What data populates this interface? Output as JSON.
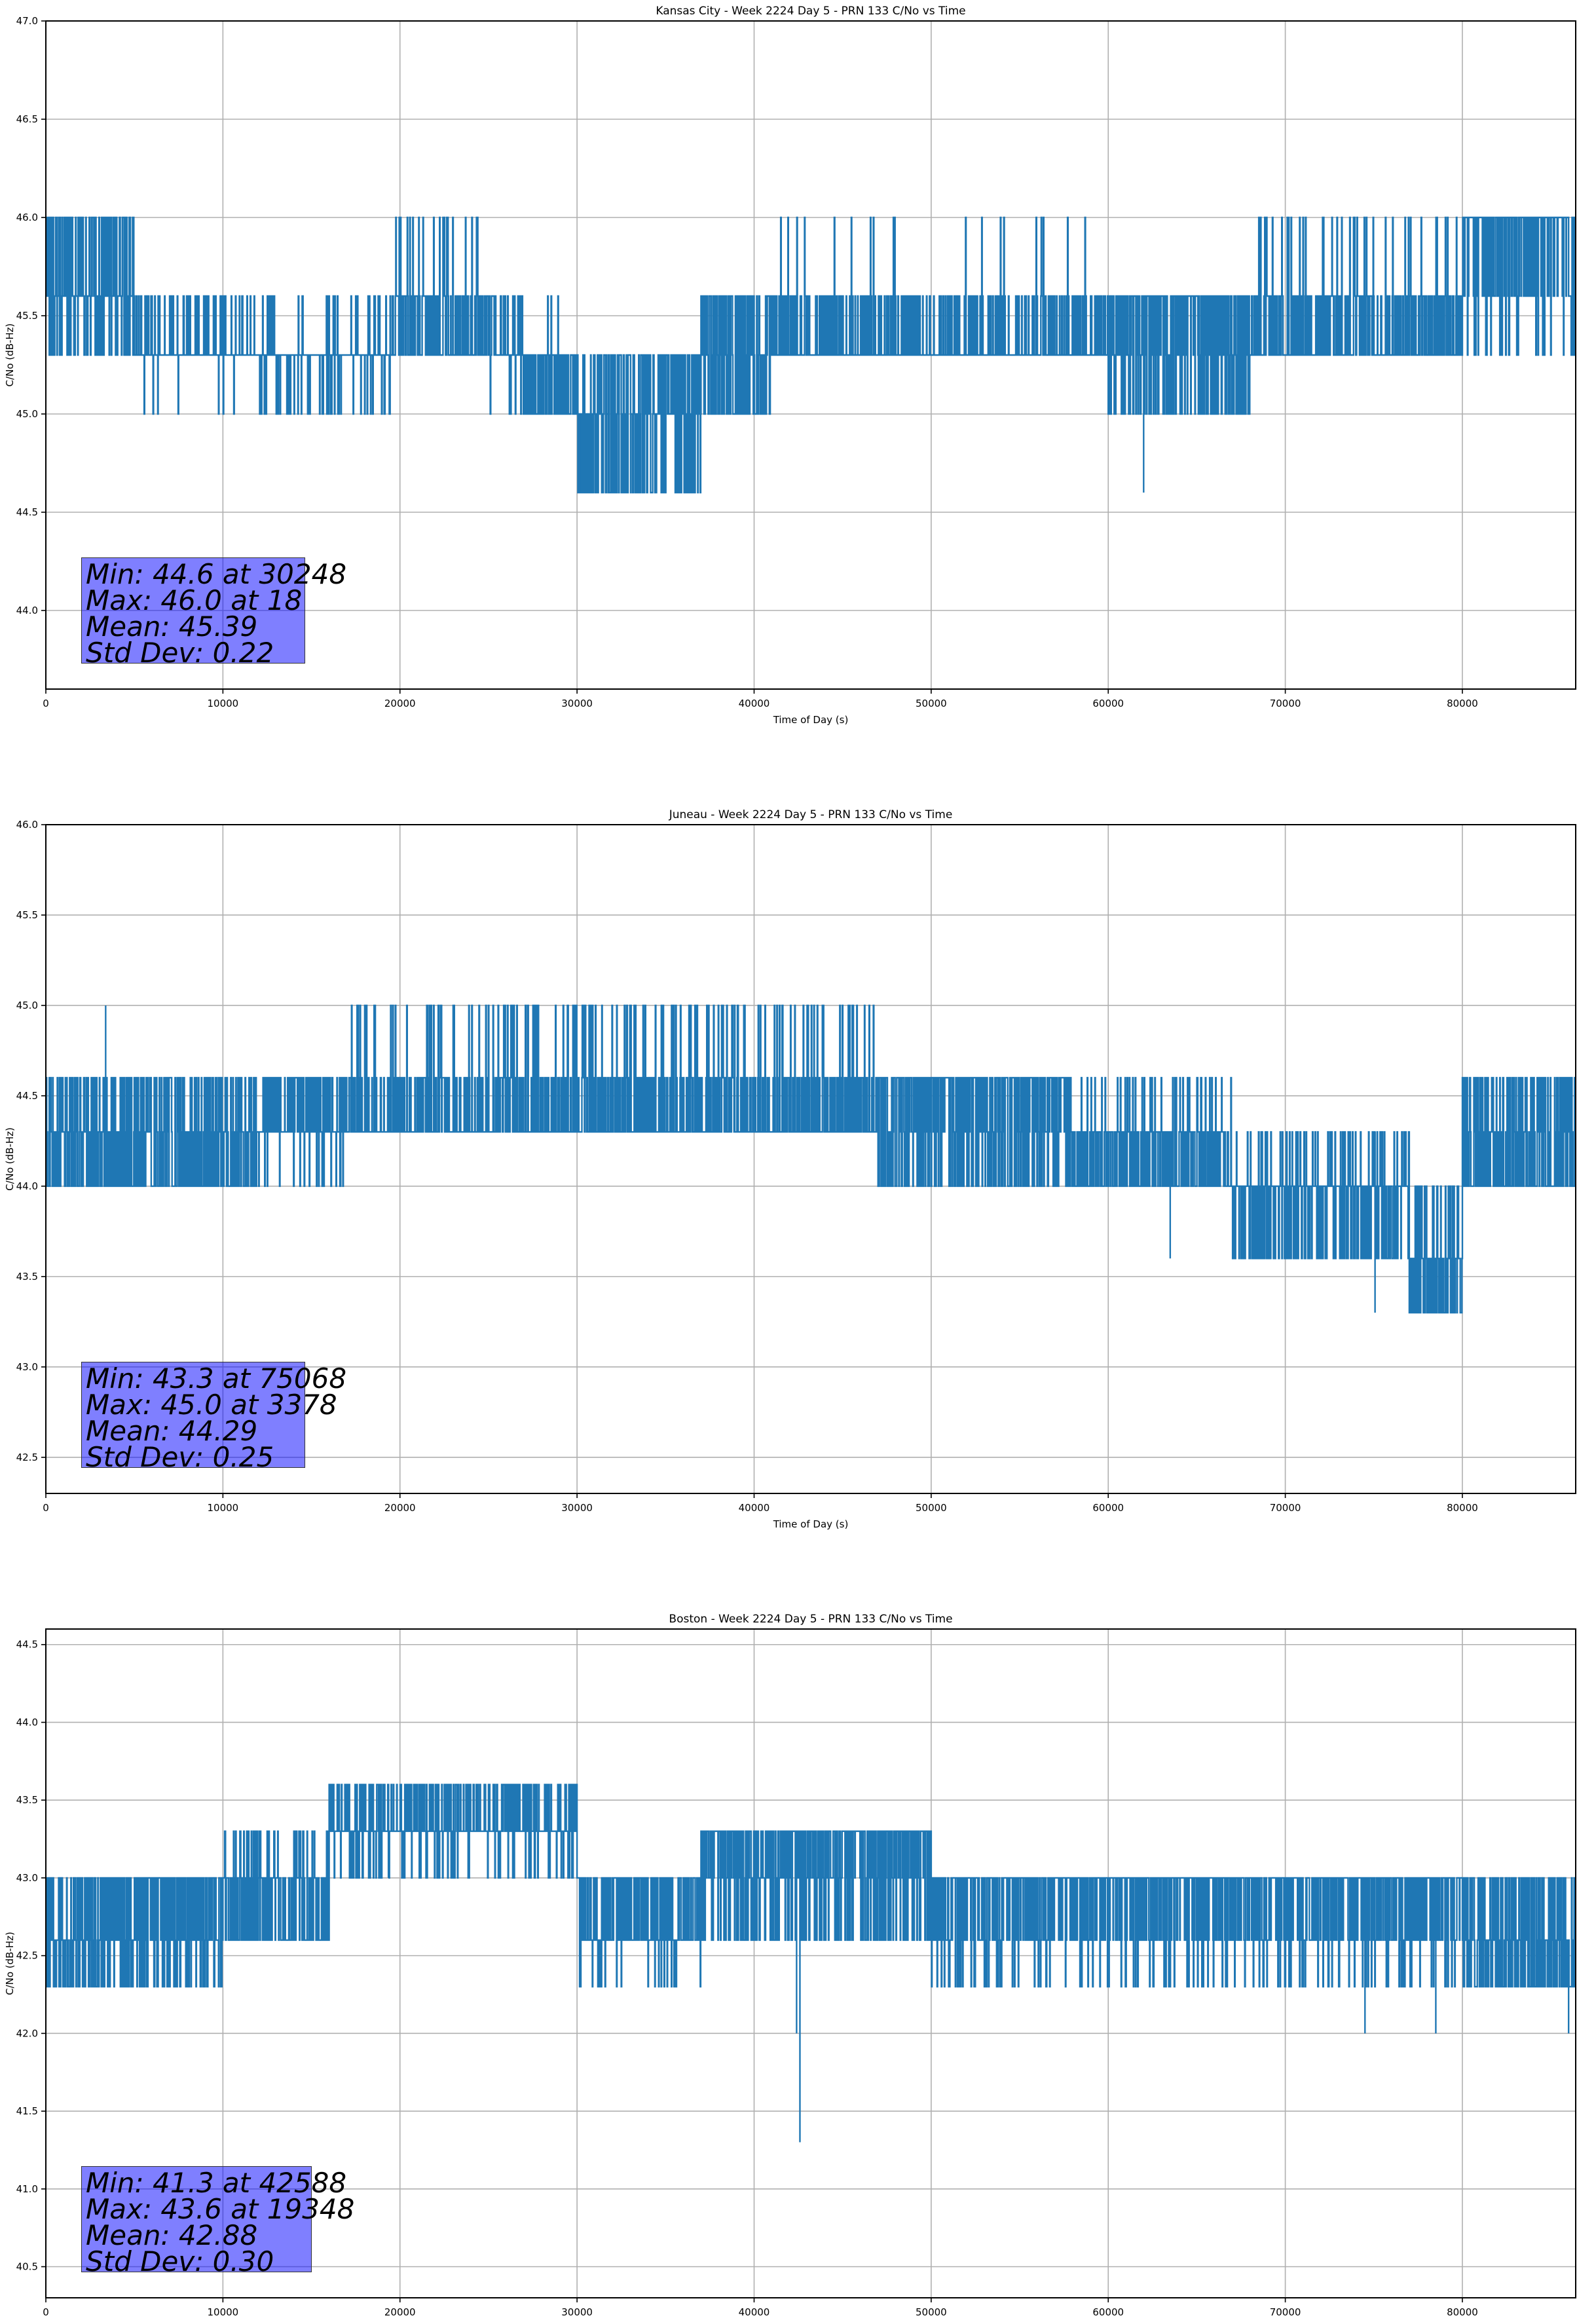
{
  "chart_data": [
    {
      "type": "line",
      "title": "Kansas City - Week 2224 Day 5 - PRN 133 C/No vs Time",
      "xlabel": "Time of Day (s)",
      "ylabel": "C/No (dB-Hz)",
      "xlim": [
        0,
        86400
      ],
      "ylim": [
        43.6,
        47.0
      ],
      "xticks": [
        0,
        10000,
        20000,
        30000,
        40000,
        50000,
        60000,
        70000,
        80000
      ],
      "yticks": [
        "44.0",
        "44.5",
        "45.0",
        "45.5",
        "46.0",
        "46.5",
        "47.0"
      ],
      "grid": true,
      "line_color": "#1f77b4",
      "series": [
        {
          "name": "C/No",
          "segments": [
            {
              "x": [
                0,
                5000
              ],
              "base": 45.6,
              "alts": [
                46.0,
                45.3
              ],
              "p_hi": 0.35,
              "p_lo": 0.25
            },
            {
              "x": [
                5000,
                11500
              ],
              "base": 45.6,
              "alts": [
                45.3,
                45.0
              ],
              "p_hi": 0.8,
              "p_lo": 0.02
            },
            {
              "x": [
                11500,
                19500
              ],
              "base": 45.6,
              "alts": [
                45.3,
                45.0
              ],
              "p_hi": 0.75,
              "p_lo": 0.12
            },
            {
              "x": [
                19500,
                24500
              ],
              "base": 45.6,
              "alts": [
                45.3,
                46.0
              ],
              "p_hi": 0.6,
              "p_lo": 0.1
            },
            {
              "x": [
                24500,
                27000
              ],
              "base": 45.6,
              "alts": [
                45.3,
                45.0
              ],
              "p_hi": 0.6,
              "p_lo": 0.05
            },
            {
              "x": [
                27000,
                30000
              ],
              "base": 45.3,
              "alts": [
                45.0,
                45.6
              ],
              "p_hi": 0.5,
              "p_lo": 0.02
            },
            {
              "x": [
                30000,
                37000
              ],
              "base": 45.0,
              "alts": [
                45.3,
                44.6
              ],
              "p_hi": 0.35,
              "p_lo": 0.35
            },
            {
              "x": [
                37000,
                41000
              ],
              "base": 45.3,
              "alts": [
                45.0,
                45.6
              ],
              "p_hi": 0.45,
              "p_lo": 0.35
            },
            {
              "x": [
                41000,
                60000
              ],
              "base": 45.6,
              "alts": [
                45.3,
                46.0
              ],
              "p_hi": 0.7,
              "p_lo": 0.03
            },
            {
              "x": [
                60000,
                68000
              ],
              "base": 45.3,
              "alts": [
                45.6,
                45.0
              ],
              "p_hi": 0.5,
              "p_lo": 0.25
            },
            {
              "x": [
                68000,
                80000
              ],
              "base": 45.6,
              "alts": [
                45.3,
                46.0
              ],
              "p_hi": 0.6,
              "p_lo": 0.05
            },
            {
              "x": [
                80000,
                86400
              ],
              "base": 45.6,
              "alts": [
                46.0,
                45.3
              ],
              "p_hi": 0.6,
              "p_lo": 0.1
            }
          ],
          "events": [
            [
              30248,
              44.6
            ],
            [
              62000,
              44.6
            ],
            [
              18,
              46.0
            ]
          ]
        }
      ],
      "stats": {
        "min": "Min: 44.6 at 30248",
        "max": "Max: 46.0 at 18",
        "mean": "Mean: 45.39",
        "std": "Std Dev: 0.22"
      }
    },
    {
      "type": "line",
      "title": "Juneau - Week 2224 Day 5 - PRN 133 C/No vs Time",
      "xlabel": "Time of Day (s)",
      "ylabel": "C/No (dB-Hz)",
      "xlim": [
        0,
        86400
      ],
      "ylim": [
        42.3,
        46.0
      ],
      "xticks": [
        0,
        10000,
        20000,
        30000,
        40000,
        50000,
        60000,
        70000,
        80000
      ],
      "yticks": [
        "42.5",
        "43.0",
        "43.5",
        "44.0",
        "44.5",
        "45.0",
        "45.5",
        "46.0"
      ],
      "grid": true,
      "line_color": "#1f77b4",
      "series": [
        {
          "name": "C/No",
          "segments": [
            {
              "x": [
                0,
                12000
              ],
              "base": 44.3,
              "alts": [
                44.0,
                44.6
              ],
              "p_hi": 0.45,
              "p_lo": 0.25
            },
            {
              "x": [
                12000,
                17000
              ],
              "base": 44.6,
              "alts": [
                44.3,
                44.0
              ],
              "p_hi": 0.5,
              "p_lo": 0.1
            },
            {
              "x": [
                17000,
                29000
              ],
              "base": 44.6,
              "alts": [
                44.3,
                45.0
              ],
              "p_hi": 0.6,
              "p_lo": 0.1
            },
            {
              "x": [
                29000,
                47000
              ],
              "base": 44.6,
              "alts": [
                44.3,
                45.0
              ],
              "p_hi": 0.6,
              "p_lo": 0.12
            },
            {
              "x": [
                47000,
                58000
              ],
              "base": 44.3,
              "alts": [
                44.6,
                44.0
              ],
              "p_hi": 0.5,
              "p_lo": 0.3
            },
            {
              "x": [
                58000,
                67000
              ],
              "base": 44.3,
              "alts": [
                44.0,
                44.6
              ],
              "p_hi": 0.5,
              "p_lo": 0.1
            },
            {
              "x": [
                67000,
                77000
              ],
              "base": 44.3,
              "alts": [
                44.0,
                43.6
              ],
              "p_hi": 0.6,
              "p_lo": 0.3
            },
            {
              "x": [
                77000,
                80000
              ],
              "base": 44.0,
              "alts": [
                43.6,
                43.3
              ],
              "p_hi": 0.4,
              "p_lo": 0.4
            },
            {
              "x": [
                80000,
                86400
              ],
              "base": 44.3,
              "alts": [
                44.0,
                44.6
              ],
              "p_hi": 0.5,
              "p_lo": 0.3
            }
          ],
          "events": [
            [
              75068,
              43.3
            ],
            [
              3378,
              45.0
            ],
            [
              63500,
              43.6
            ]
          ]
        }
      ],
      "stats": {
        "min": "Min: 43.3 at 75068",
        "max": "Max: 45.0 at 3378",
        "mean": "Mean: 44.29",
        "std": "Std Dev: 0.25"
      }
    },
    {
      "type": "line",
      "title": "Boston - Week 2224 Day 5 - PRN 133 C/No vs Time",
      "xlabel": "Time of Day (s)",
      "ylabel": "C/No (dB-Hz)",
      "xlim": [
        0,
        86400
      ],
      "ylim": [
        40.3,
        44.6
      ],
      "xticks": [
        0,
        10000,
        20000,
        30000,
        40000,
        50000,
        60000,
        70000,
        80000
      ],
      "yticks": [
        "40.5",
        "41.0",
        "41.5",
        "42.0",
        "42.5",
        "43.0",
        "43.5",
        "44.0",
        "44.5"
      ],
      "grid": true,
      "line_color": "#1f77b4",
      "series": [
        {
          "name": "C/No",
          "segments": [
            {
              "x": [
                0,
                2000
              ],
              "base": 42.6,
              "alts": [
                42.3,
                43.0
              ],
              "p_hi": 0.3,
              "p_lo": 0.4
            },
            {
              "x": [
                2000,
                10000
              ],
              "base": 42.6,
              "alts": [
                43.0,
                42.3
              ],
              "p_hi": 0.45,
              "p_lo": 0.2
            },
            {
              "x": [
                10000,
                16000
              ],
              "base": 43.0,
              "alts": [
                42.6,
                43.3
              ],
              "p_hi": 0.5,
              "p_lo": 0.1
            },
            {
              "x": [
                16000,
                30000
              ],
              "base": 43.0,
              "alts": [
                43.3,
                43.6
              ],
              "p_hi": 0.6,
              "p_lo": 0.3
            },
            {
              "x": [
                30000,
                37000
              ],
              "base": 43.0,
              "alts": [
                42.6,
                42.3
              ],
              "p_hi": 0.5,
              "p_lo": 0.1
            },
            {
              "x": [
                37000,
                50000
              ],
              "base": 43.0,
              "alts": [
                43.3,
                42.6
              ],
              "p_hi": 0.6,
              "p_lo": 0.2
            },
            {
              "x": [
                50000,
                80000
              ],
              "base": 42.6,
              "alts": [
                43.0,
                42.3
              ],
              "p_hi": 0.6,
              "p_lo": 0.1
            },
            {
              "x": [
                80000,
                86400
              ],
              "base": 42.6,
              "alts": [
                42.3,
                43.0
              ],
              "p_hi": 0.4,
              "p_lo": 0.3
            }
          ],
          "events": [
            [
              42588,
              41.3
            ],
            [
              42400,
              42.0
            ],
            [
              19348,
              43.6
            ],
            [
              74500,
              42.0
            ],
            [
              78500,
              42.0
            ],
            [
              86000,
              42.0
            ]
          ]
        }
      ],
      "stats": {
        "min": "Min: 41.3 at 42588",
        "max": "Max: 43.6 at 19348",
        "mean": "Mean: 42.88",
        "std": "Std Dev: 0.30"
      }
    }
  ]
}
